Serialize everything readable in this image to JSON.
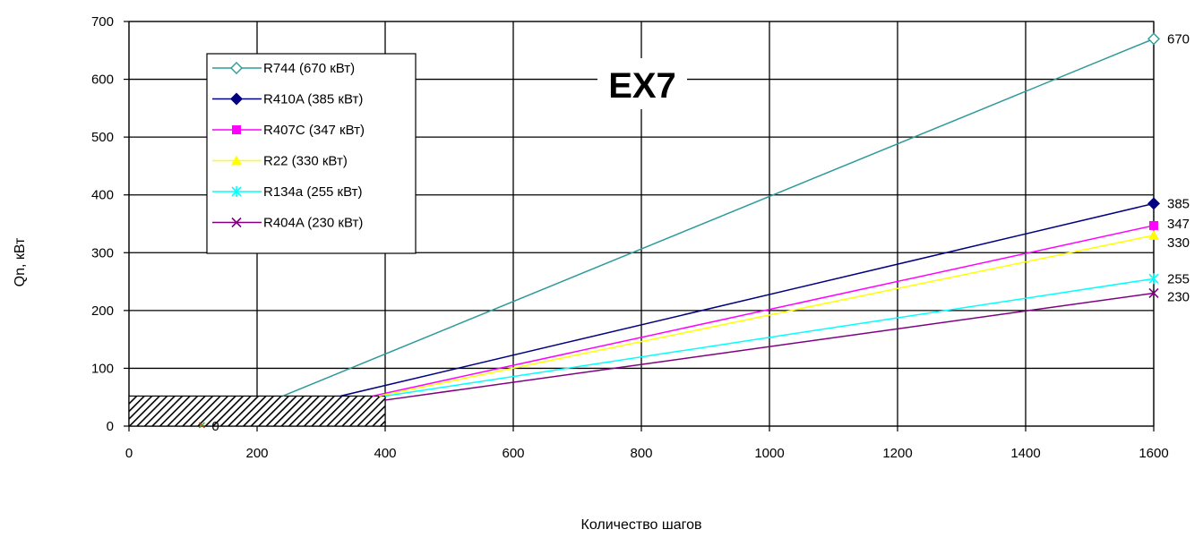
{
  "chart_data": {
    "type": "line",
    "title": "EX7",
    "xlabel": "Количество шагов",
    "ylabel": "Qn, кВт",
    "xlim": [
      0,
      1600
    ],
    "ylim": [
      0,
      700
    ],
    "xticks": [
      0,
      200,
      400,
      600,
      800,
      1000,
      1200,
      1400,
      1600
    ],
    "yticks": [
      0,
      100,
      200,
      300,
      400,
      500,
      600,
      700
    ],
    "grid": true,
    "legend_position": "top-left",
    "hatched_region": {
      "x": [
        0,
        400
      ],
      "y": [
        0,
        52
      ]
    },
    "stray_label": {
      "x": 160,
      "y": 0,
      "text": "0"
    },
    "series": [
      {
        "name": "R744 (670 кВт)",
        "color": "#2E9A9A",
        "marker": "diamond-open",
        "points": [
          [
            240,
            52
          ],
          [
            1600,
            670
          ]
        ],
        "end_label": "670"
      },
      {
        "name": "R410A (385 кВт)",
        "color": "#000080",
        "marker": "diamond",
        "points": [
          [
            330,
            52
          ],
          [
            1600,
            385
          ]
        ],
        "end_label": "385"
      },
      {
        "name": "R407C (347 кВт)",
        "color": "#FF00FF",
        "marker": "square",
        "points": [
          [
            380,
            52
          ],
          [
            1600,
            347
          ]
        ],
        "end_label": "347"
      },
      {
        "name": "R22 (330 кВт)",
        "color": "#FFFF00",
        "marker": "triangle",
        "points": [
          [
            390,
            52
          ],
          [
            1600,
            330
          ]
        ],
        "end_label": "330"
      },
      {
        "name": "R134a (255 кВт)",
        "color": "#00FFFF",
        "marker": "star",
        "points": [
          [
            400,
            52
          ],
          [
            1600,
            255
          ]
        ],
        "end_label": "255"
      },
      {
        "name": "R404A (230 кВт)",
        "color": "#800080",
        "marker": "x",
        "points": [
          [
            400,
            45
          ],
          [
            1600,
            230
          ]
        ],
        "end_label": "230"
      }
    ]
  }
}
